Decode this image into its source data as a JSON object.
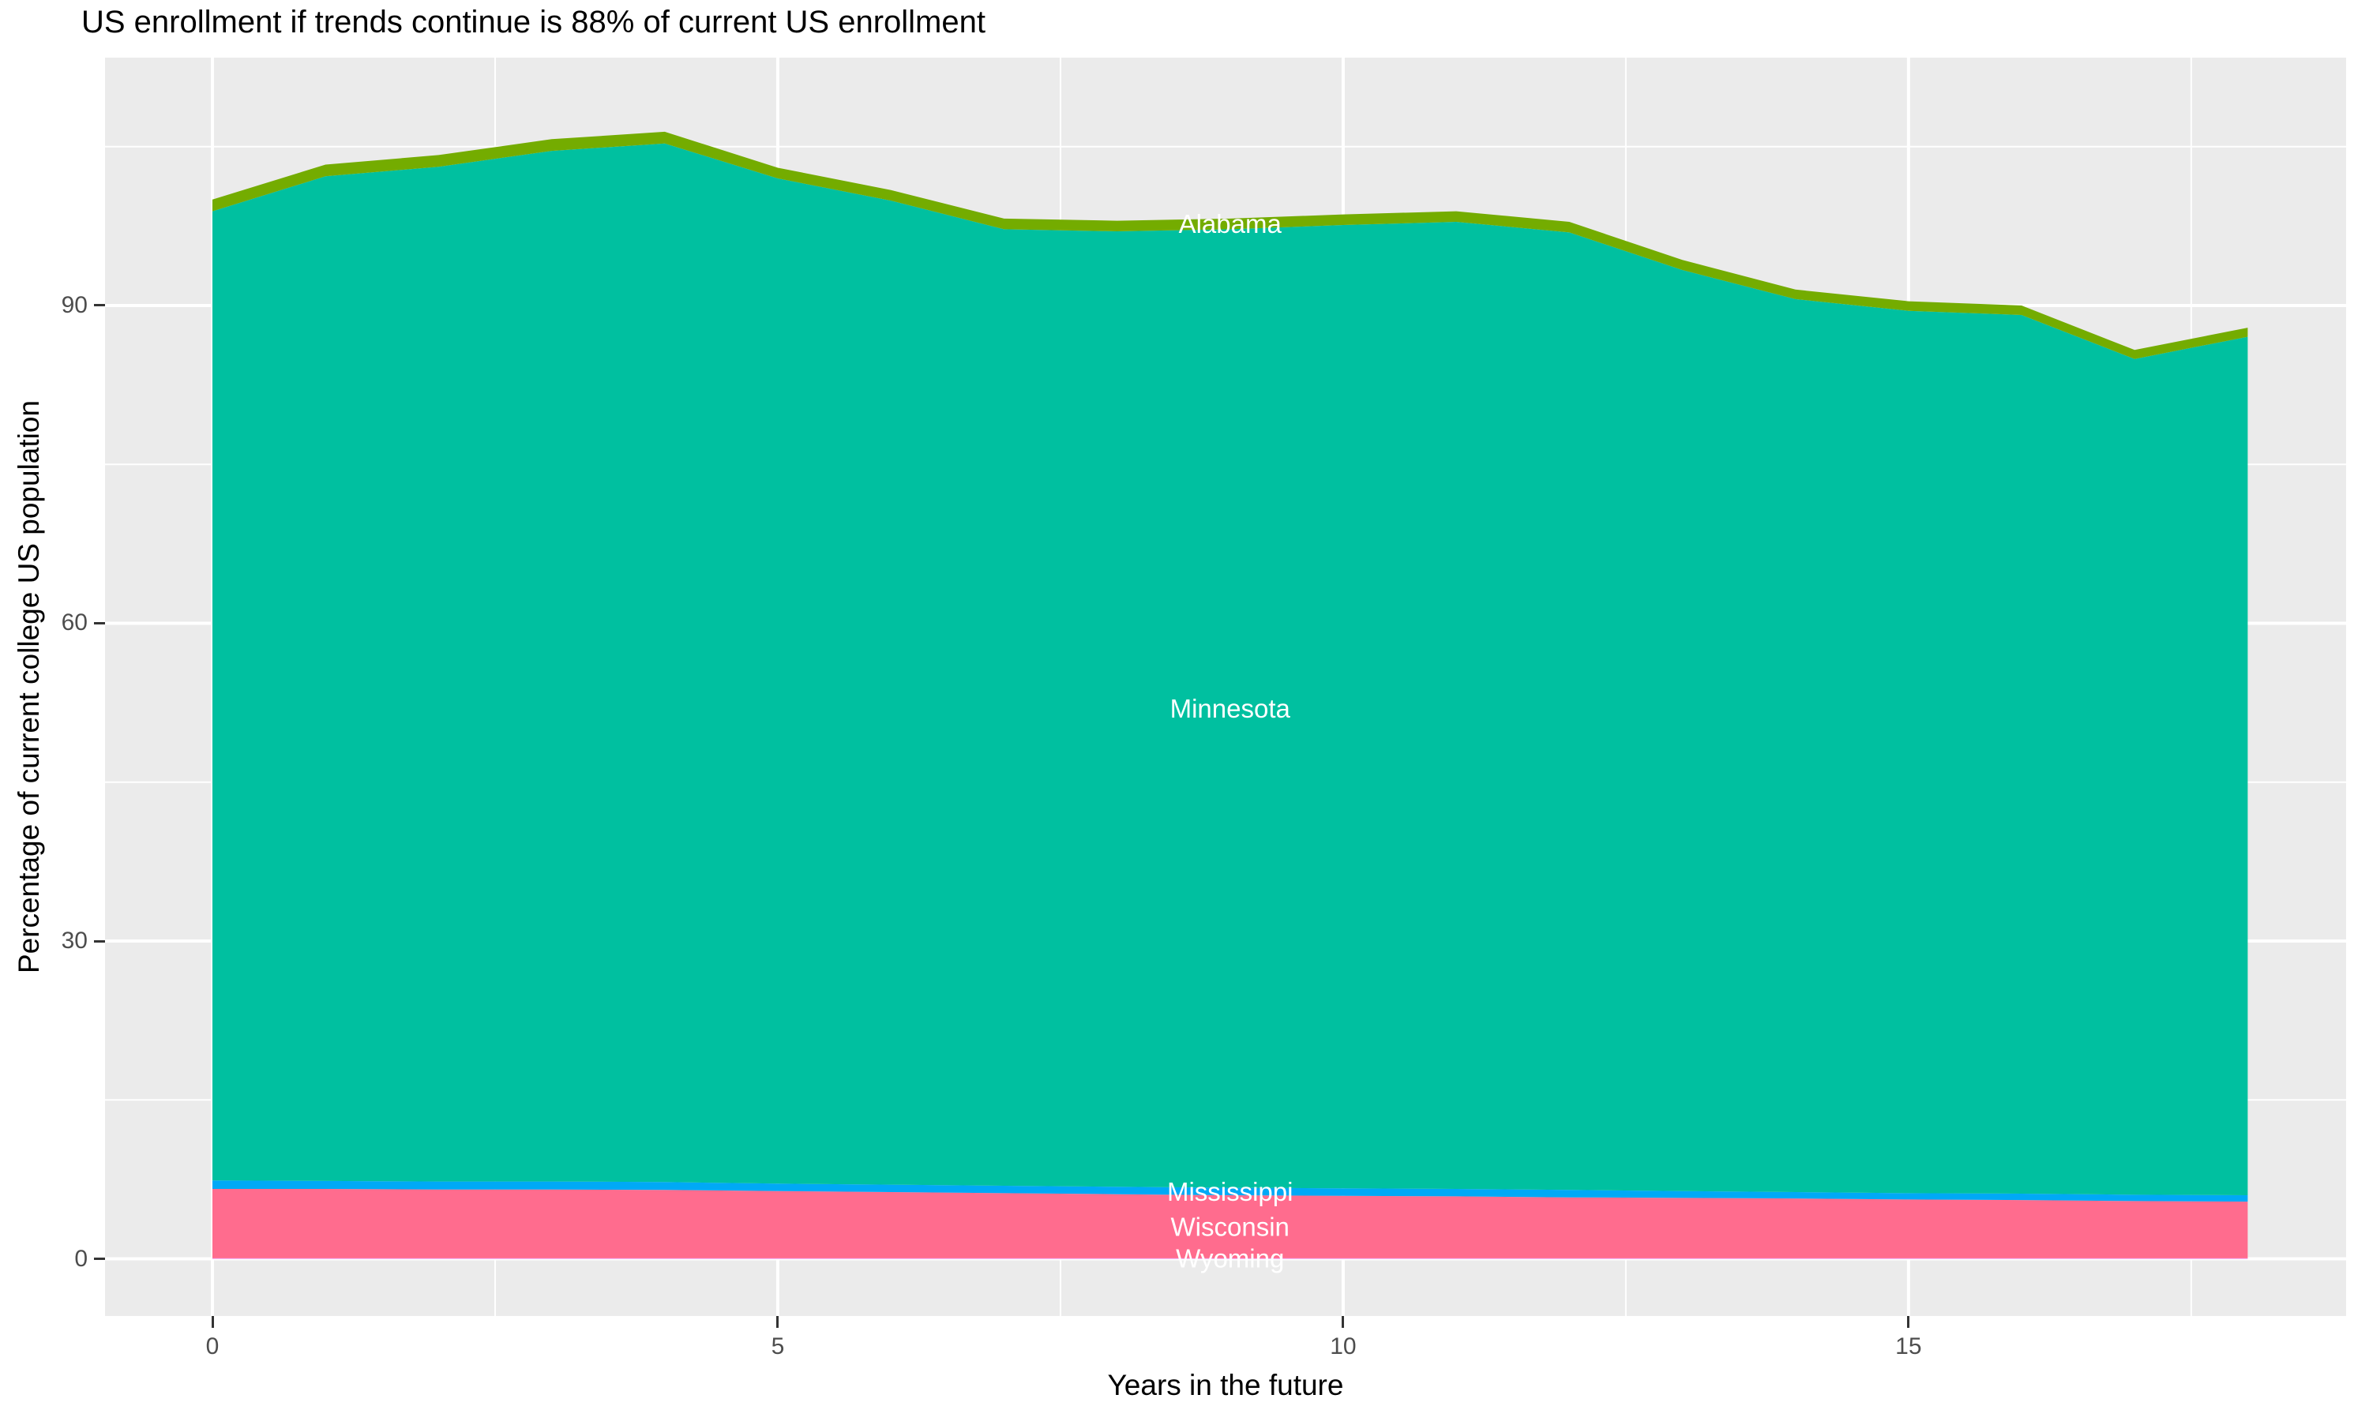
{
  "title": "US enrollment if trends continue is 88% of current US enrollment",
  "axes": {
    "x": {
      "label": "Years in the future",
      "ticks": [
        0,
        5,
        10,
        15
      ],
      "minor_ticks": [
        2.5,
        7.5,
        12.5,
        17.5
      ],
      "range": [
        -0.95,
        18.87
      ]
    },
    "y": {
      "label": "Percentage of current college US population",
      "ticks": [
        0,
        30,
        60,
        90
      ],
      "minor_ticks": [
        15,
        45,
        75,
        105
      ],
      "range": [
        -5.4,
        113.4
      ]
    }
  },
  "colors": {
    "panel_bg": "#EBEBEB",
    "grid": "#FFFFFF",
    "tick_text": "#4D4D4D",
    "axis_text": "#000000",
    "area_label_text": "#FFFFFF"
  },
  "chart_data": {
    "type": "area",
    "stacked": true,
    "title": "US enrollment if trends continue is 88% of current US enrollment",
    "xlabel": "Years in the future",
    "ylabel": "Percentage of current college US population",
    "legend_position": "none",
    "grid": true,
    "x": [
      0,
      1,
      2,
      3,
      4,
      5,
      6,
      7,
      8,
      9,
      10,
      11,
      12,
      13,
      14,
      15,
      16,
      17,
      18
    ],
    "xlim": [
      0,
      18
    ],
    "ylim": [
      0,
      106.4
    ],
    "series": [
      {
        "name": "Wyoming",
        "color": "#E76BF3",
        "values": [
          0.05,
          0.05,
          0.05,
          0.05,
          0.05,
          0.05,
          0.05,
          0.05,
          0.05,
          0.05,
          0.05,
          0.05,
          0.05,
          0.05,
          0.05,
          0.05,
          0.05,
          0.05,
          0.05
        ]
      },
      {
        "name": "Wisconsin",
        "color": "#FF6C8E",
        "values": [
          6.55,
          6.55,
          6.5,
          6.5,
          6.45,
          6.35,
          6.25,
          6.15,
          6.05,
          5.95,
          5.9,
          5.85,
          5.75,
          5.7,
          5.65,
          5.55,
          5.5,
          5.4,
          5.35
        ]
      },
      {
        "name": "Mississippi",
        "color": "#00A9F6",
        "values": [
          0.8,
          0.75,
          0.75,
          0.75,
          0.75,
          0.7,
          0.7,
          0.7,
          0.7,
          0.7,
          0.7,
          0.7,
          0.7,
          0.65,
          0.6,
          0.6,
          0.6,
          0.6,
          0.6
        ]
      },
      {
        "name": "Minnesota",
        "color": "#00C0A0",
        "values": [
          91.5,
          94.85,
          95.8,
          97.3,
          98.05,
          94.9,
          92.9,
          90.3,
          90.2,
          90.5,
          90.95,
          91.3,
          90.4,
          86.95,
          84.3,
          83.3,
          82.95,
          78.9,
          81.05
        ]
      },
      {
        "name": "Alabama",
        "color": "#74AC00",
        "values": [
          1.1,
          1.1,
          1.1,
          1.1,
          1.1,
          1.0,
          1.0,
          1.0,
          1.0,
          1.0,
          1.0,
          1.0,
          1.0,
          0.95,
          0.9,
          0.9,
          0.9,
          0.85,
          0.85
        ]
      }
    ],
    "stack_totals": [
      100,
      103.3,
      104.2,
      105.7,
      106.4,
      103,
      100.9,
      98.2,
      98,
      98.2,
      98.6,
      98.9,
      97.9,
      94.3,
      91.5,
      90.4,
      90,
      85.8,
      87.85
    ],
    "series_labels": {
      "at_x": 9,
      "color": "#FFFFFF"
    }
  }
}
